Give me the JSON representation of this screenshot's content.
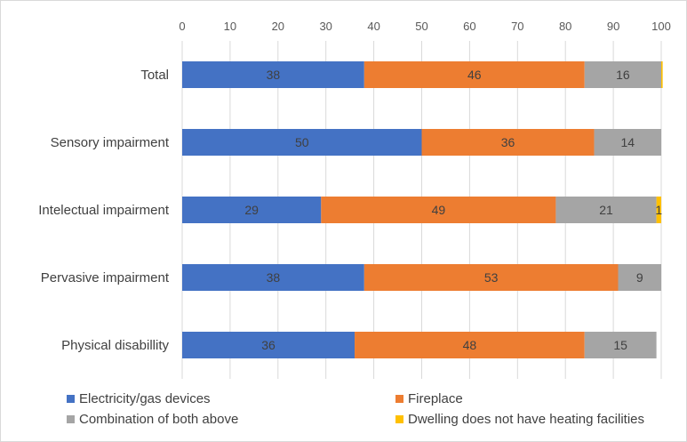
{
  "chart_data": {
    "type": "bar",
    "orientation": "horizontal",
    "stacked": true,
    "categories": [
      "Total",
      "Sensory impairment",
      "Intelectual impairment",
      "Pervasive impairment ",
      "Physical disabillity"
    ],
    "series": [
      {
        "name": "Electricity/gas devices",
        "color": "#4472C4",
        "values": [
          38,
          50,
          29,
          38,
          36
        ]
      },
      {
        "name": "Fireplace",
        "color": "#ED7D31",
        "values": [
          46,
          36,
          49,
          53,
          48
        ]
      },
      {
        "name": "Combination of both above",
        "color": "#A5A5A5",
        "values": [
          16,
          14,
          21,
          9,
          15
        ]
      },
      {
        "name": "Dwelling does not have heating facilities",
        "color": "#FFC000",
        "values": [
          0.3,
          0,
          1,
          0,
          0
        ]
      }
    ],
    "data_labels": [
      [
        "38",
        "46",
        "16",
        ""
      ],
      [
        "50",
        "36",
        "14",
        ""
      ],
      [
        "29",
        "49",
        "21",
        "1"
      ],
      [
        "38",
        "53",
        "9",
        ""
      ],
      [
        "36",
        "48",
        "15",
        ""
      ]
    ],
    "xlim": [
      0,
      100
    ],
    "xticks": [
      "0",
      "10",
      "20",
      "30",
      "40",
      "50",
      "60",
      "70",
      "80",
      "90",
      "100"
    ],
    "x_axis_position": "top",
    "grid": true,
    "legend_position": "bottom"
  }
}
